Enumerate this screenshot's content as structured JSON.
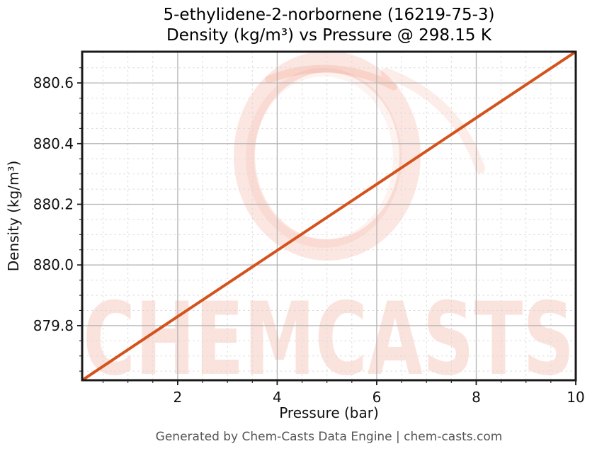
{
  "figure": {
    "footer": "Generated by Chem-Casts Data Engine | chem-casts.com"
  },
  "watermark": {
    "text": "CHEMCASTS",
    "color": "#e8502a"
  },
  "chart_data": {
    "type": "line",
    "title_line1": "5-ethylidene-2-norbornene (16219-75-3)",
    "title_line2": "Density (kg/m³) vs Pressure @ 298.15 K",
    "xlabel": "Pressure (bar)",
    "ylabel": "Density (kg/m³)",
    "xlim": [
      0.08,
      10
    ],
    "ylim": [
      879.62,
      880.703
    ],
    "x_major_ticks": [
      2,
      4,
      6,
      8,
      10
    ],
    "x_major_tick_labels": [
      "2",
      "4",
      "6",
      "8",
      "10"
    ],
    "x_minor_ticks": [
      0.5,
      1.0,
      1.5,
      2.5,
      3.0,
      3.5,
      4.5,
      5.0,
      5.5,
      6.5,
      7.0,
      7.5,
      8.5,
      9.0,
      9.5
    ],
    "y_major_ticks": [
      879.8,
      880.0,
      880.2,
      880.4,
      880.6
    ],
    "y_major_tick_labels": [
      "879.8",
      "880.0",
      "880.2",
      "880.4",
      "880.6"
    ],
    "y_minor_ticks": [
      879.65,
      879.7,
      879.75,
      879.85,
      879.9,
      879.95,
      880.05,
      880.1,
      880.15,
      880.25,
      880.3,
      880.35,
      880.45,
      880.5,
      880.55,
      880.65
    ],
    "series": [
      {
        "name": "Density vs Pressure @ 298.15 K",
        "x": [
          0.08,
          2,
          4,
          6,
          8,
          10
        ],
        "y": [
          879.62,
          879.83,
          880.048,
          880.266,
          880.485,
          880.703
        ],
        "color": "#d4531d",
        "linewidth": 4
      }
    ],
    "grid": {
      "major_color": "#b3b3b3",
      "minor_color": "#d9d9d9",
      "minor_style": "dashed"
    },
    "axis_color": "#1a1a1a",
    "legend_position": "none"
  }
}
